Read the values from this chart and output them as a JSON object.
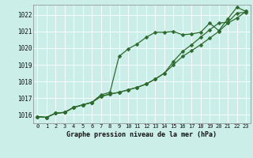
{
  "title": "Graphe pression niveau de la mer (hPa)",
  "bg_color": "#cceee8",
  "line_color": "#2d6a2d",
  "line1": [
    1015.9,
    1015.85,
    1016.1,
    1016.15,
    1016.45,
    1016.6,
    1016.75,
    1017.2,
    1017.35,
    1019.5,
    1019.95,
    1020.25,
    1020.65,
    1020.95,
    1020.95,
    1021.0,
    1020.8,
    1020.85,
    1020.95,
    1021.5,
    1021.05,
    1021.75,
    1022.45,
    1022.2
  ],
  "line2": [
    1015.9,
    1015.85,
    1016.1,
    1016.15,
    1016.45,
    1016.6,
    1016.75,
    1017.1,
    1017.25,
    1017.35,
    1017.5,
    1017.65,
    1017.85,
    1018.15,
    1018.5,
    1019.0,
    1019.5,
    1019.85,
    1020.2,
    1020.6,
    1021.0,
    1021.5,
    1021.8,
    1022.2
  ],
  "line3": [
    1015.9,
    1015.85,
    1016.1,
    1016.15,
    1016.45,
    1016.6,
    1016.75,
    1017.1,
    1017.25,
    1017.35,
    1017.5,
    1017.65,
    1017.85,
    1018.15,
    1018.5,
    1019.2,
    1019.8,
    1020.2,
    1020.65,
    1021.1,
    1021.5,
    1021.55,
    1022.1,
    1022.15
  ],
  "xmin": -0.5,
  "xmax": 23.5,
  "ymin": 1015.5,
  "ymax": 1022.6,
  "yticks": [
    1016,
    1017,
    1018,
    1019,
    1020,
    1021,
    1022
  ],
  "xticks": [
    0,
    1,
    2,
    3,
    4,
    5,
    6,
    7,
    8,
    9,
    10,
    11,
    12,
    13,
    14,
    15,
    16,
    17,
    18,
    19,
    20,
    21,
    22,
    23
  ],
  "tick_fontsize": 5.0,
  "label_fontsize": 6.0,
  "marker_size": 2.5,
  "line_width": 0.9
}
